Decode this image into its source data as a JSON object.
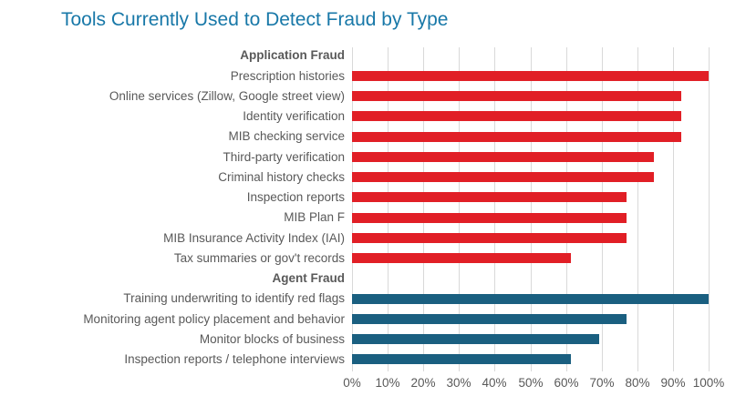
{
  "chart_data": {
    "type": "bar",
    "orientation": "horizontal",
    "title": "Tools Currently Used to Detect Fraud by Type",
    "xlabel": "",
    "ylabel": "",
    "xlim": [
      0,
      100
    ],
    "x_ticks": [
      "0%",
      "10%",
      "20%",
      "30%",
      "40%",
      "50%",
      "60%",
      "70%",
      "80%",
      "90%",
      "100%"
    ],
    "grid": "vertical-only",
    "legend": "none",
    "data_labels": "none",
    "groups": [
      {
        "name": "Application Fraud",
        "color": "#E11F26",
        "items": [
          {
            "label": "Prescription histories",
            "value": 100
          },
          {
            "label": "Online services (Zillow, Google street view)",
            "value": 92.3
          },
          {
            "label": "Identity verification",
            "value": 92.3
          },
          {
            "label": "MIB checking service",
            "value": 92.3
          },
          {
            "label": "Third-party verification",
            "value": 84.6
          },
          {
            "label": "Criminal history checks",
            "value": 84.6
          },
          {
            "label": "Inspection reports",
            "value": 76.9
          },
          {
            "label": "MIB Plan F",
            "value": 76.9
          },
          {
            "label": "MIB Insurance Activity Index (IAI)",
            "value": 76.9
          },
          {
            "label": "Tax summaries or gov't records",
            "value": 61.5
          }
        ]
      },
      {
        "name": "Agent Fraud",
        "color": "#1A5F80",
        "items": [
          {
            "label": "Training underwriting to identify red flags",
            "value": 100
          },
          {
            "label": "Monitoring agent policy placement and behavior",
            "value": 76.9
          },
          {
            "label": "Monitor blocks of business",
            "value": 69.2
          },
          {
            "label": "Inspection reports / telephone interviews",
            "value": 61.5
          }
        ]
      }
    ]
  },
  "colors": {
    "title_text": "#1878A8",
    "label_text": "#595959",
    "gridline": "#D9D9D9",
    "application_fraud_bar": "#E11F26",
    "agent_fraud_bar": "#1A5F80",
    "background": "#FFFFFF"
  }
}
